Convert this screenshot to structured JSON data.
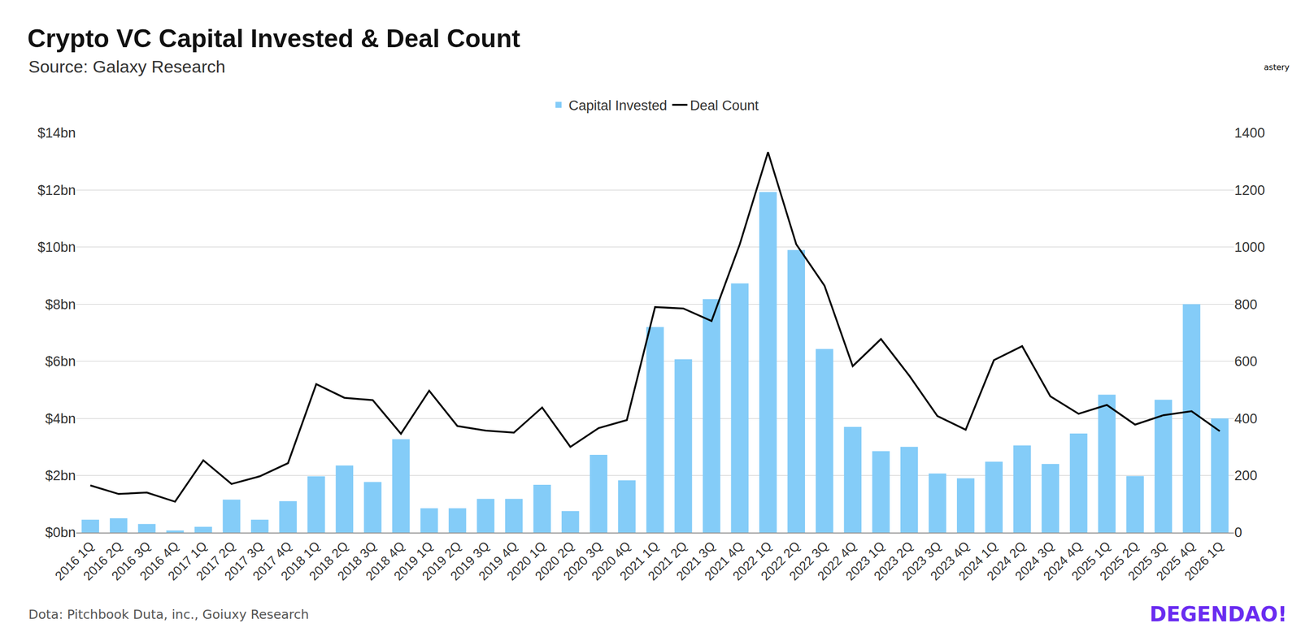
{
  "chart_data": {
    "type": "bar",
    "title": "Crypto VC Capital Invested & Deal Count",
    "subtitle": "Source: Galaxy Research",
    "categories": [
      "2016 1Q",
      "2016 2Q",
      "2016 3Q",
      "2016 4Q",
      "2017 1Q",
      "2017 2Q",
      "2017 3Q",
      "2017 4Q",
      "2018 1Q",
      "2018 2Q",
      "2018 3Q",
      "2018 4Q",
      "2019 1Q",
      "2019 2Q",
      "2019 3Q",
      "2019 4Q",
      "2020 1Q",
      "2020 2Q",
      "2020 3Q",
      "2020 4Q",
      "2021 1Q",
      "2021 2Q",
      "2021 3Q",
      "2021 4Q",
      "2022 1Q",
      "2022 2Q",
      "2022 3Q",
      "2022 4Q",
      "2023 1Q",
      "2023 2Q",
      "2023 3Q",
      "2023 4Q",
      "2024 1Q",
      "2024 2Q",
      "2024 3Q",
      "2024 4Q",
      "2025 1Q",
      "2025 2Q",
      "2025 3Q",
      "2025 4Q",
      "2026 1Q"
    ],
    "series": [
      {
        "name": "Capital Invested",
        "type": "bar",
        "color": "#84ccf8",
        "values": [
          0.45,
          0.5,
          0.3,
          0.07,
          0.2,
          1.15,
          0.45,
          1.1,
          1.97,
          2.35,
          1.77,
          3.27,
          0.85,
          0.85,
          1.18,
          1.18,
          1.67,
          0.75,
          2.72,
          1.83,
          7.2,
          6.07,
          8.18,
          8.73,
          11.93,
          9.9,
          6.43,
          3.7,
          2.85,
          3.0,
          2.07,
          1.9,
          2.48,
          3.05,
          2.4,
          3.47,
          4.83,
          1.98,
          4.65,
          8.0,
          4.0
        ]
      },
      {
        "name": "Deal Count",
        "type": "line",
        "color": "#000000",
        "axis": "y2",
        "values": [
          165,
          135,
          140,
          108,
          253,
          170,
          197,
          243,
          520,
          472,
          464,
          346,
          497,
          373,
          357,
          350,
          438,
          300,
          366,
          394,
          790,
          785,
          741,
          1010,
          1333,
          1010,
          865,
          583,
          678,
          550,
          408,
          360,
          604,
          653,
          477,
          416,
          447,
          378,
          411,
          425,
          355
        ]
      }
    ],
    "ylim": [
      0,
      14
    ],
    "yticks": [
      {
        "value": 0,
        "label": "$0bn"
      },
      {
        "value": 2,
        "label": "$2bn"
      },
      {
        "value": 4,
        "label": "$4bn"
      },
      {
        "value": 6,
        "label": "$6bn"
      },
      {
        "value": 8,
        "label": "$8bn"
      },
      {
        "value": 10,
        "label": "$10bn"
      },
      {
        "value": 12,
        "label": "$12bn"
      },
      {
        "value": 14,
        "label": "$14bn"
      }
    ],
    "y2lim": [
      0,
      1400
    ],
    "y2ticks": [
      0,
      200,
      400,
      600,
      800,
      1000,
      1200,
      1400
    ],
    "grid": true,
    "legend": "top",
    "annotations": [
      {
        "text": "Dota: Pitchbook Duta, inc., Goiuxy Research"
      },
      {
        "text": "astery"
      },
      {
        "text": "DEGENDAO!"
      }
    ]
  }
}
